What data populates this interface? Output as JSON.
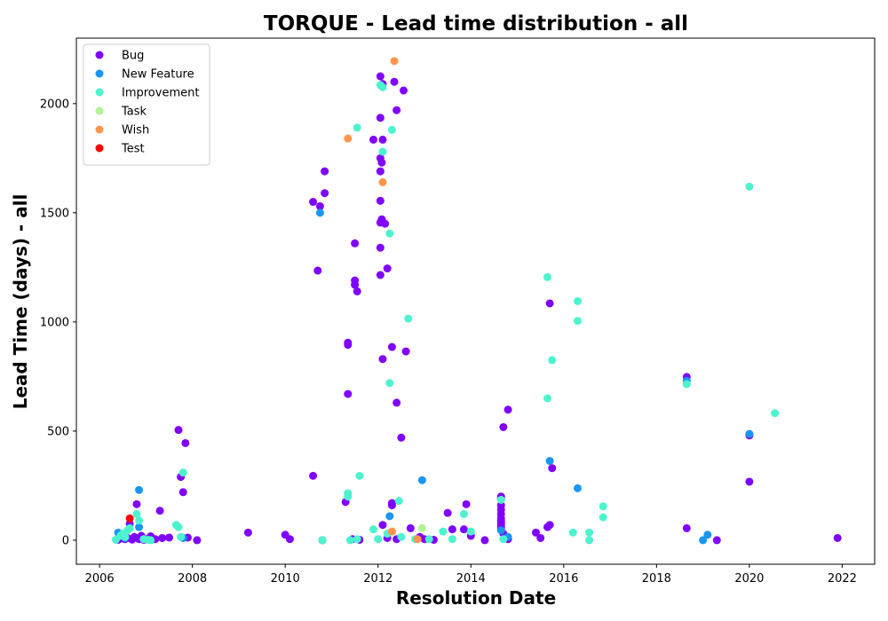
{
  "chart_data": {
    "type": "scatter",
    "title": "TORQUE - Lead time distribution - all",
    "xlabel": "Resolution Date",
    "ylabel": "Lead Time (days) - all",
    "xlim": [
      2005.5,
      2022.7
    ],
    "ylim": [
      -110,
      2300
    ],
    "xticks": [
      2006,
      2008,
      2010,
      2012,
      2014,
      2016,
      2018,
      2020,
      2022
    ],
    "yticks": [
      0,
      500,
      1000,
      1500,
      2000
    ],
    "legend_position": "top-left",
    "grid": false,
    "series": [
      {
        "name": "Bug",
        "color": "#8000ff",
        "points": [
          [
            2006.4,
            2
          ],
          [
            2006.5,
            8
          ],
          [
            2006.55,
            5
          ],
          [
            2006.6,
            10
          ],
          [
            2006.65,
            75
          ],
          [
            2006.7,
            3
          ],
          [
            2006.75,
            15
          ],
          [
            2006.8,
            165
          ],
          [
            2006.85,
            5
          ],
          [
            2006.9,
            20
          ],
          [
            2006.95,
            2
          ],
          [
            2007.0,
            5
          ],
          [
            2007.1,
            18
          ],
          [
            2007.2,
            5
          ],
          [
            2007.3,
            135
          ],
          [
            2007.35,
            10
          ],
          [
            2007.5,
            12
          ],
          [
            2007.7,
            505
          ],
          [
            2007.75,
            290
          ],
          [
            2007.8,
            220
          ],
          [
            2007.85,
            445
          ],
          [
            2007.9,
            12
          ],
          [
            2008.1,
            0
          ],
          [
            2009.2,
            35
          ],
          [
            2010.0,
            25
          ],
          [
            2010.1,
            5
          ],
          [
            2010.6,
            295
          ],
          [
            2010.6,
            1550
          ],
          [
            2010.7,
            1235
          ],
          [
            2010.75,
            1530
          ],
          [
            2010.85,
            1590
          ],
          [
            2010.85,
            1690
          ],
          [
            2010.8,
            0
          ],
          [
            2011.3,
            175
          ],
          [
            2011.35,
            670
          ],
          [
            2011.35,
            895
          ],
          [
            2011.35,
            905
          ],
          [
            2011.5,
            1360
          ],
          [
            2011.5,
            1190
          ],
          [
            2011.5,
            1170
          ],
          [
            2011.55,
            1140
          ],
          [
            2011.45,
            5
          ],
          [
            2011.6,
            2
          ],
          [
            2011.9,
            1835
          ],
          [
            2012.05,
            2125
          ],
          [
            2012.1,
            2090
          ],
          [
            2012.05,
            1935
          ],
          [
            2012.1,
            1835
          ],
          [
            2012.05,
            1750
          ],
          [
            2012.08,
            1730
          ],
          [
            2012.05,
            1690
          ],
          [
            2012.05,
            1555
          ],
          [
            2012.08,
            1470
          ],
          [
            2012.05,
            1455
          ],
          [
            2012.15,
            1450
          ],
          [
            2012.05,
            1340
          ],
          [
            2012.2,
            1245
          ],
          [
            2012.05,
            1215
          ],
          [
            2012.1,
            830
          ],
          [
            2012.3,
            885
          ],
          [
            2012.3,
            170
          ],
          [
            2012.3,
            160
          ],
          [
            2012.35,
            2100
          ],
          [
            2012.4,
            1970
          ],
          [
            2012.55,
            2060
          ],
          [
            2012.4,
            630
          ],
          [
            2012.5,
            470
          ],
          [
            2012.6,
            865
          ],
          [
            2012.1,
            70
          ],
          [
            2012.2,
            10
          ],
          [
            2012.4,
            5
          ],
          [
            2012.7,
            55
          ],
          [
            2012.9,
            15
          ],
          [
            2013.0,
            5
          ],
          [
            2013.2,
            2
          ],
          [
            2013.5,
            125
          ],
          [
            2013.6,
            50
          ],
          [
            2013.85,
            50
          ],
          [
            2013.9,
            165
          ],
          [
            2014.0,
            20
          ],
          [
            2014.3,
            0
          ],
          [
            2014.65,
            200
          ],
          [
            2014.65,
            190
          ],
          [
            2014.65,
            160
          ],
          [
            2014.65,
            140
          ],
          [
            2014.65,
            120
          ],
          [
            2014.65,
            100
          ],
          [
            2014.65,
            90
          ],
          [
            2014.65,
            80
          ],
          [
            2014.65,
            70
          ],
          [
            2014.65,
            60
          ],
          [
            2014.65,
            50
          ],
          [
            2014.7,
            30
          ],
          [
            2014.7,
            518
          ],
          [
            2014.8,
            598
          ],
          [
            2014.8,
            5
          ],
          [
            2015.4,
            35
          ],
          [
            2015.5,
            10
          ],
          [
            2015.65,
            60
          ],
          [
            2015.7,
            70
          ],
          [
            2015.7,
            1085
          ],
          [
            2015.75,
            330
          ],
          [
            2018.65,
            748
          ],
          [
            2018.65,
            55
          ],
          [
            2019.3,
            0
          ],
          [
            2020.0,
            480
          ],
          [
            2020.0,
            268
          ],
          [
            2021.9,
            10
          ]
        ]
      },
      {
        "name": "New Feature",
        "color": "#1996f3",
        "points": [
          [
            2006.4,
            35
          ],
          [
            2006.55,
            10
          ],
          [
            2006.85,
            230
          ],
          [
            2006.85,
            60
          ],
          [
            2007.8,
            10
          ],
          [
            2010.75,
            1500
          ],
          [
            2012.25,
            110
          ],
          [
            2012.95,
            275
          ],
          [
            2014.65,
            45
          ],
          [
            2014.8,
            15
          ],
          [
            2015.7,
            363
          ],
          [
            2016.3,
            238
          ],
          [
            2018.65,
            730
          ],
          [
            2019.0,
            0
          ],
          [
            2019.1,
            25
          ],
          [
            2020.0,
            487
          ]
        ]
      },
      {
        "name": "Improvement",
        "color": "#4df3ce",
        "points": [
          [
            2006.35,
            2
          ],
          [
            2006.45,
            20
          ],
          [
            2006.5,
            30
          ],
          [
            2006.55,
            15
          ],
          [
            2006.6,
            45
          ],
          [
            2006.65,
            55
          ],
          [
            2006.8,
            120
          ],
          [
            2006.85,
            90
          ],
          [
            2006.95,
            5
          ],
          [
            2007.05,
            2
          ],
          [
            2007.1,
            0
          ],
          [
            2007.65,
            70
          ],
          [
            2007.7,
            60
          ],
          [
            2007.8,
            310
          ],
          [
            2007.75,
            15
          ],
          [
            2010.8,
            0
          ],
          [
            2011.35,
            215
          ],
          [
            2011.35,
            200
          ],
          [
            2011.4,
            0
          ],
          [
            2011.55,
            5
          ],
          [
            2011.55,
            1890
          ],
          [
            2011.6,
            295
          ],
          [
            2011.9,
            50
          ],
          [
            2012.05,
            2085
          ],
          [
            2012.1,
            2075
          ],
          [
            2012.1,
            1780
          ],
          [
            2012.3,
            1880
          ],
          [
            2012.25,
            1405
          ],
          [
            2012.25,
            720
          ],
          [
            2012.45,
            180
          ],
          [
            2012.65,
            1015
          ],
          [
            2012.0,
            5
          ],
          [
            2012.2,
            30
          ],
          [
            2012.5,
            15
          ],
          [
            2012.8,
            5
          ],
          [
            2013.1,
            5
          ],
          [
            2013.4,
            40
          ],
          [
            2013.6,
            5
          ],
          [
            2013.85,
            120
          ],
          [
            2014.0,
            40
          ],
          [
            2014.65,
            185
          ],
          [
            2014.7,
            5
          ],
          [
            2015.65,
            1205
          ],
          [
            2015.65,
            650
          ],
          [
            2015.75,
            825
          ],
          [
            2016.2,
            35
          ],
          [
            2016.3,
            1095
          ],
          [
            2016.3,
            1005
          ],
          [
            2016.55,
            35
          ],
          [
            2016.55,
            0
          ],
          [
            2016.85,
            155
          ],
          [
            2016.85,
            105
          ],
          [
            2018.65,
            715
          ],
          [
            2020.0,
            1620
          ],
          [
            2020.55,
            582
          ]
        ]
      },
      {
        "name": "Task",
        "color": "#b3f396",
        "points": [
          [
            2012.95,
            55
          ]
        ]
      },
      {
        "name": "Wish",
        "color": "#ff964e",
        "points": [
          [
            2011.35,
            1840
          ],
          [
            2012.1,
            1640
          ],
          [
            2012.35,
            2195
          ],
          [
            2012.3,
            40
          ],
          [
            2012.85,
            5
          ]
        ]
      },
      {
        "name": "Test",
        "color": "#ff0000",
        "points": [
          [
            2006.65,
            100
          ]
        ]
      }
    ]
  }
}
